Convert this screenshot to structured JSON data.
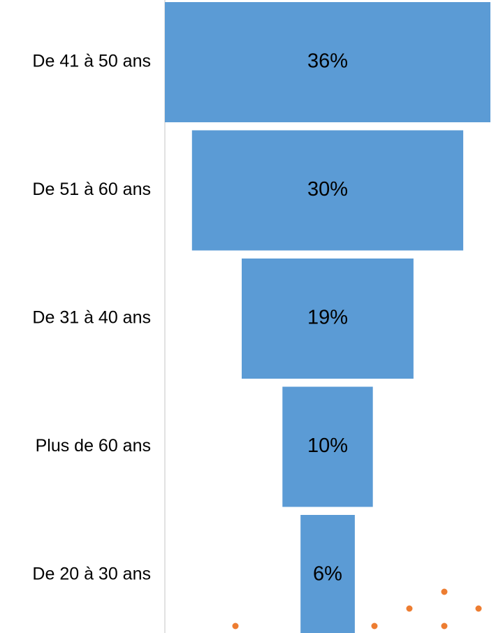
{
  "chart_data": {
    "type": "bar",
    "subtype": "funnel",
    "orientation": "horizontal",
    "categories": [
      "De 41 à 50 ans",
      "De 51 à 60 ans",
      "De 31 à 40 ans",
      "Plus de 60 ans",
      "De 20 à 30 ans"
    ],
    "values": [
      36,
      30,
      19,
      10,
      6
    ],
    "value_labels": [
      "36%",
      "30%",
      "19%",
      "10%",
      "6%"
    ],
    "unit": "%",
    "bar_color": "#5B9BD5",
    "axis_color": "#D9D9D9",
    "decoration_color": "#ED7D31",
    "grid": false,
    "legend": "none",
    "title": ""
  }
}
